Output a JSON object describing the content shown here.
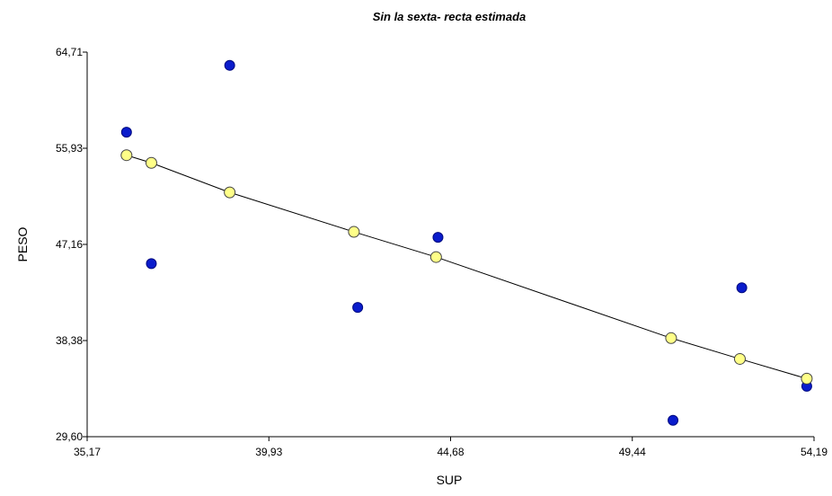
{
  "chart_data": {
    "type": "scatter",
    "title": "Sin la sexta- recta estimada",
    "xlabel": "SUP",
    "ylabel": "PESO",
    "xlim": [
      35.17,
      54.19
    ],
    "ylim": [
      29.6,
      64.71
    ],
    "x_ticks": [
      "35,17",
      "39,93",
      "44,68",
      "49,44",
      "54,19"
    ],
    "y_ticks": [
      "29,60",
      "38,38",
      "47,16",
      "55,93",
      "64,71"
    ],
    "grid": false,
    "legend": "none",
    "series": [
      {
        "marker_color": "#0a1ccc",
        "points": [
          [
            36.2,
            57.4
          ],
          [
            36.85,
            45.4
          ],
          [
            38.9,
            63.5
          ],
          [
            42.25,
            41.4
          ],
          [
            44.35,
            47.8
          ],
          [
            50.5,
            31.1
          ],
          [
            52.3,
            43.2
          ],
          [
            54.0,
            34.2
          ]
        ]
      },
      {
        "marker_color": "#ffff88",
        "line": true,
        "points": [
          [
            36.2,
            55.3
          ],
          [
            36.85,
            54.6
          ],
          [
            38.9,
            51.9
          ],
          [
            42.15,
            48.3
          ],
          [
            44.3,
            46.0
          ],
          [
            50.45,
            38.6
          ],
          [
            52.25,
            36.7
          ],
          [
            54.0,
            34.9
          ]
        ]
      }
    ]
  }
}
